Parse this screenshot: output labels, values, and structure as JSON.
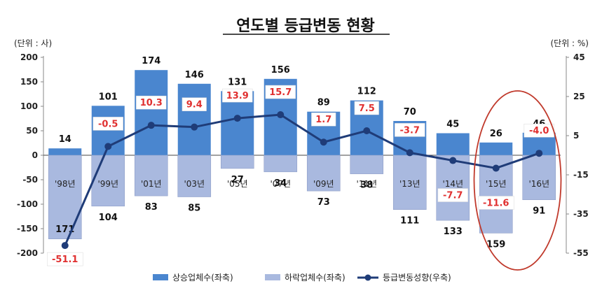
{
  "chart_data": {
    "type": "bar",
    "title": "연도별 등급변동 현황",
    "left_unit": "(단위 : 사)",
    "right_unit": "(단위 : %)",
    "categories": [
      "'98년",
      "'99년",
      "'01년",
      "'03년",
      "'05년",
      "'07년",
      "'09년",
      "'11년",
      "'13년",
      "'14년",
      "'15년",
      "'16년"
    ],
    "series": [
      {
        "name": "상승업체수(좌축)",
        "values": [
          14,
          101,
          174,
          146,
          131,
          156,
          89,
          112,
          70,
          45,
          26,
          46
        ],
        "color": "#4a86cf"
      },
      {
        "name": "하락업체수(좌축)",
        "values": [
          171,
          104,
          83,
          85,
          27,
          34,
          73,
          38,
          111,
          133,
          159,
          91
        ],
        "color": "#a9b9df"
      },
      {
        "name": "등급변동성향(우축)",
        "values": [
          -51.1,
          -0.5,
          10.3,
          9.4,
          13.9,
          15.7,
          1.7,
          7.5,
          -3.7,
          -7.7,
          -11.6,
          -4.0
        ],
        "labels": [
          "-51.1",
          "-0.5",
          "10.3",
          "9.4",
          "13.9",
          "15.7",
          "1.7",
          "7.5",
          "-3.7",
          "-7.7",
          "-11.6",
          "-4.0"
        ],
        "color": "#1f3c78"
      }
    ],
    "y_left": {
      "min": -200,
      "max": 200,
      "ticks": [
        200,
        150,
        100,
        50,
        0,
        -50,
        -100,
        -150,
        -200
      ]
    },
    "y_right": {
      "min": -55,
      "max": 45,
      "ticks": [
        45,
        25,
        5,
        -15,
        -35,
        -55
      ]
    },
    "legend_position": "bottom",
    "highlight": {
      "categories": [
        "'15년",
        "'16년"
      ],
      "shape": "ellipse",
      "color": "#c0392b"
    }
  }
}
